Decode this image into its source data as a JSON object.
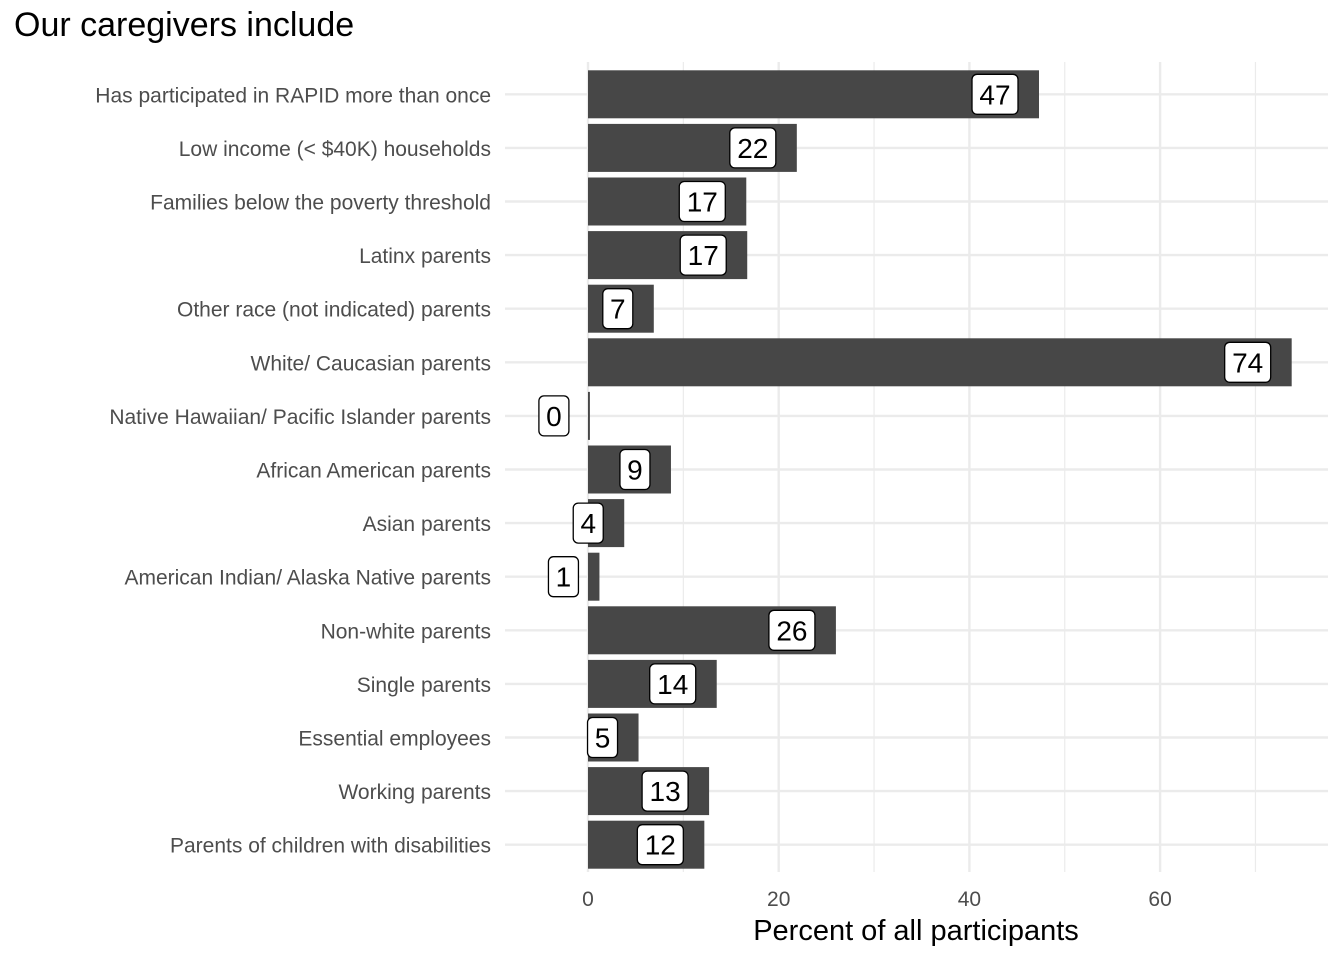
{
  "chart_data": {
    "type": "bar",
    "orientation": "horizontal",
    "title": "Our caregivers include",
    "xlabel": "Percent of all participants",
    "ylabel": "",
    "xlim": [
      -10,
      75
    ],
    "xticks": [
      0,
      20,
      40,
      60
    ],
    "grid": true,
    "categories": [
      "Has participated in RAPID more than once",
      "Low income (< $40K) households",
      "Families below the poverty threshold",
      "Latinx parents",
      "Other race (not indicated) parents",
      "White/ Caucasian parents",
      "Native Hawaiian/ Pacific Islander parents",
      "African American parents",
      "Asian parents",
      "American Indian/ Alaska Native parents",
      "Non-white parents",
      "Single parents",
      "Essential employees",
      "Working parents",
      "Parents of children with disabilities"
    ],
    "values": [
      47.3,
      21.9,
      16.6,
      16.7,
      6.9,
      73.8,
      0.2,
      8.7,
      3.8,
      1.2,
      26.0,
      13.5,
      5.3,
      12.7,
      12.2
    ],
    "labels": [
      "47",
      "22",
      "17",
      "17",
      "7",
      "74",
      "0",
      "9",
      "4",
      "1",
      "26",
      "14",
      "5",
      "13",
      "12"
    ],
    "colors": {
      "bar": "#474747",
      "grid": "#ebebeb",
      "label_bg": "#ffffff",
      "label_border": "#000000",
      "text": "#4d4d4d"
    }
  }
}
